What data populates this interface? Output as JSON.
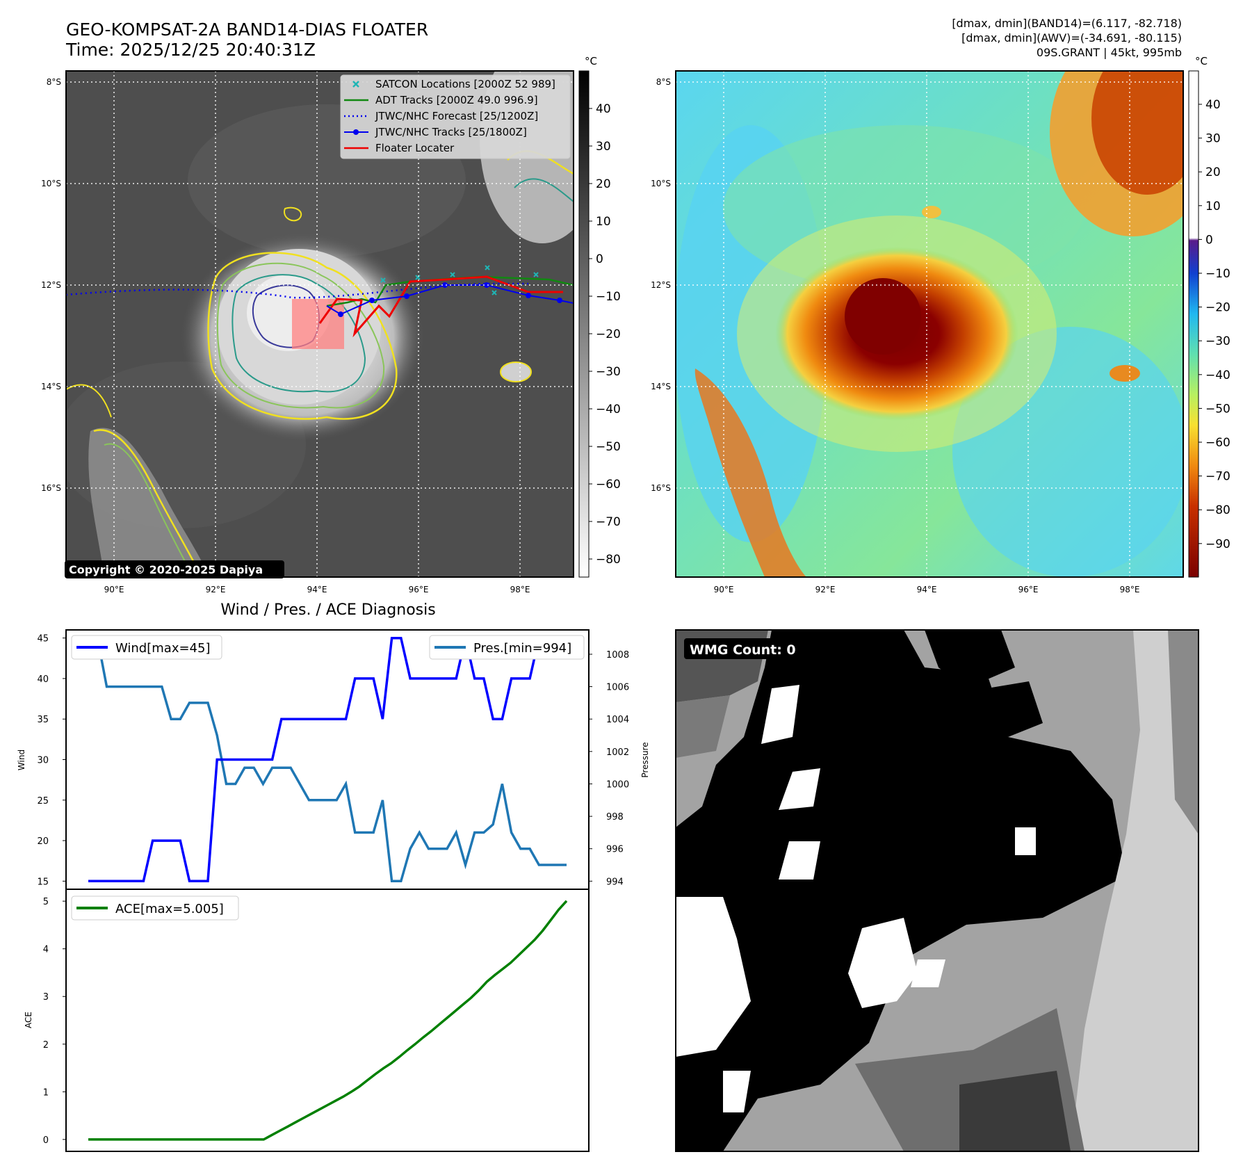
{
  "header": {
    "title_line1": "GEO-KOMPSAT-2A BAND14-DIAS FLOATER",
    "title_line2": "Time: 2025/12/25 20:40:31Z",
    "info_line1": "[dmax, dmin](BAND14)=(6.117, -82.718)",
    "info_line2": "[dmax, dmin](AWV)=(-34.691, -80.115)",
    "info_line3": "09S.GRANT | 45kt, 995mb"
  },
  "maps": {
    "lat_labels": [
      "8°S",
      "10°S",
      "12°S",
      "14°S",
      "16°S"
    ],
    "lon_labels": [
      "90°E",
      "92°E",
      "94°E",
      "96°E",
      "98°E"
    ],
    "copyright": "Copyright © 2020-2025 Dapiya",
    "colorbar_unit": "°C",
    "ir_colorbar_ticks": [
      "40",
      "30",
      "20",
      "10",
      "0",
      "−10",
      "−20",
      "−30",
      "−40",
      "−50",
      "−60",
      "−70",
      "−80"
    ],
    "awv_colorbar_ticks": [
      "40",
      "30",
      "20",
      "10",
      "0",
      "−10",
      "−20",
      "−30",
      "−40",
      "−50",
      "−60",
      "−70",
      "−80",
      "−90"
    ],
    "legend": [
      {
        "label": "SATCON Locations [2000Z 52 989]",
        "color": "#1fb5b5",
        "style": "x"
      },
      {
        "label": "ADT Tracks [2000Z 49.0 996.9]",
        "color": "#118811",
        "style": "line"
      },
      {
        "label": "JTWC/NHC Forecast [25/1200Z]",
        "color": "#0000ee",
        "style": "dotted"
      },
      {
        "label": "JTWC/NHC Tracks [25/1800Z]",
        "color": "#0000ee",
        "style": "marker"
      },
      {
        "label": "Floater Locater",
        "color": "#ee0000",
        "style": "line"
      }
    ]
  },
  "chart_data": [
    {
      "type": "line",
      "title": "Wind / Pres. / ACE Diagnosis",
      "ylabel": "Wind",
      "ylabel_right": "Pressure",
      "ylim": [
        14,
        46
      ],
      "ylim_right": [
        993.5,
        1009.5
      ],
      "yticks": [
        15,
        20,
        25,
        30,
        35,
        40,
        45
      ],
      "yticks_right": [
        994,
        996,
        998,
        1000,
        1002,
        1004,
        1006,
        1008
      ],
      "series": [
        {
          "name": "Wind[max=45]",
          "color": "#0000ff",
          "values": [
            15,
            15,
            15,
            15,
            15,
            15,
            15,
            20,
            20,
            20,
            20,
            15,
            15,
            15,
            30,
            30,
            30,
            30,
            30,
            30,
            30,
            35,
            35,
            35,
            35,
            35,
            35,
            35,
            35,
            40,
            40,
            40,
            35,
            45,
            45,
            40,
            40,
            40,
            40,
            40,
            40,
            45,
            40,
            40,
            35,
            35,
            40,
            40,
            40,
            45,
            45,
            45,
            45
          ]
        },
        {
          "name": "Pres.[min=994]",
          "color": "#1f77b4",
          "axis": "right",
          "values": [
            1009,
            1009,
            1006,
            1006,
            1006,
            1006,
            1006,
            1006,
            1006,
            1004,
            1004,
            1005,
            1005,
            1005,
            1003,
            1000,
            1000,
            1001,
            1001,
            1000,
            1001,
            1001,
            1001,
            1000,
            999,
            999,
            999,
            999,
            1000,
            997,
            997,
            997,
            999,
            994,
            994,
            996,
            997,
            996,
            996,
            996,
            997,
            995,
            997,
            997,
            997.5,
            1000,
            997,
            996,
            996,
            995,
            995,
            995,
            995
          ]
        }
      ]
    },
    {
      "type": "line",
      "ylabel": "ACE",
      "ylim": [
        -0.25,
        5.25
      ],
      "yticks": [
        0,
        1,
        2,
        3,
        4,
        5
      ],
      "series": [
        {
          "name": "ACE[max=5.005]",
          "color": "#008000",
          "values": [
            0,
            0,
            0,
            0,
            0,
            0,
            0,
            0,
            0,
            0,
            0,
            0,
            0,
            0,
            0,
            0,
            0,
            0,
            0,
            0,
            0,
            0,
            0,
            0.09,
            0.18,
            0.27,
            0.36,
            0.45,
            0.54,
            0.63,
            0.72,
            0.81,
            0.9,
            1.0,
            1.11,
            1.24,
            1.37,
            1.49,
            1.6,
            1.73,
            1.87,
            2.0,
            2.14,
            2.27,
            2.41,
            2.55,
            2.69,
            2.83,
            2.97,
            3.13,
            3.31,
            3.45,
            3.58,
            3.71,
            3.87,
            4.03,
            4.19,
            4.38,
            4.6,
            4.82,
            5.005
          ]
        }
      ]
    }
  ],
  "wmg": {
    "label": "WMG Count: 0"
  }
}
